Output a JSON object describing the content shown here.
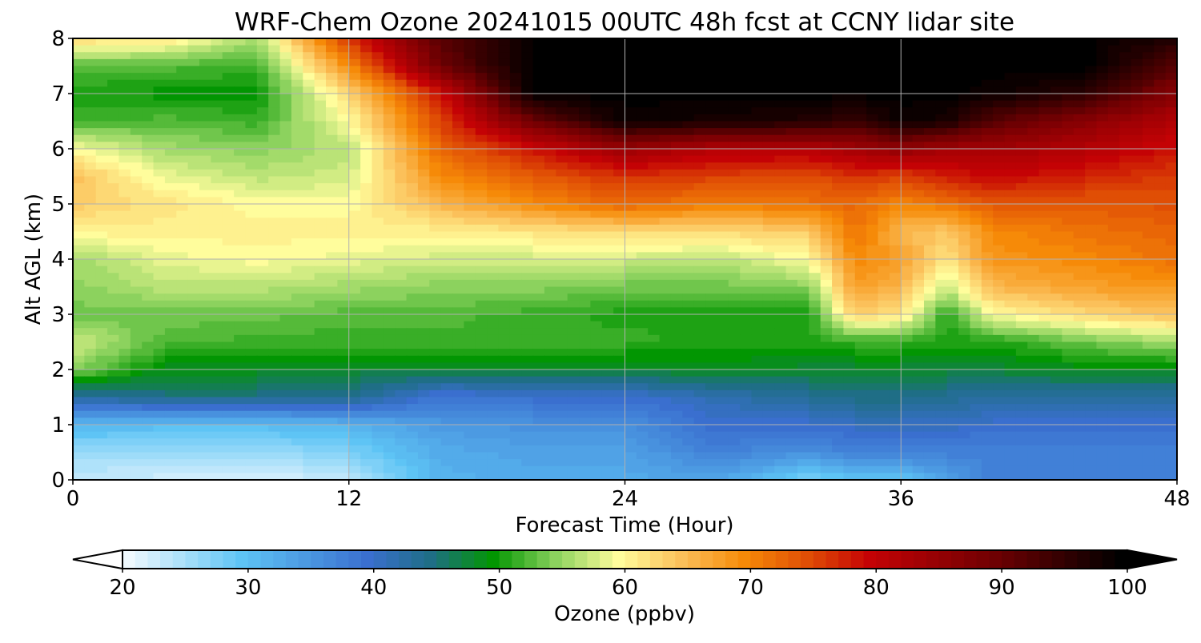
{
  "chart_data": {
    "type": "heatmap",
    "title": "WRF-Chem Ozone  20241015 00UTC 48h fcst at CCNY lidar site",
    "xlabel": "Forecast Time (Hour)",
    "ylabel": "Alt AGL (km)",
    "xlim": [
      0,
      48
    ],
    "ylim": [
      0,
      8
    ],
    "x_ticks": [
      "0",
      "12",
      "24",
      "36",
      "48"
    ],
    "y_ticks": [
      "0",
      "1",
      "2",
      "3",
      "4",
      "5",
      "6",
      "7",
      "8"
    ],
    "grid": true,
    "colorbar": {
      "label": "Ozone  (ppbv)",
      "range": [
        20,
        100
      ],
      "extend": "both",
      "ticks": [
        "20",
        "30",
        "40",
        "50",
        "60",
        "70",
        "80",
        "90",
        "100"
      ],
      "colors": [
        {
          "value": 20,
          "color": "#ffffff"
        },
        {
          "value": 30,
          "color": "#5ec4f5"
        },
        {
          "value": 40,
          "color": "#3a6fcf"
        },
        {
          "value": 45,
          "color": "#1f6e86"
        },
        {
          "value": 50,
          "color": "#029602"
        },
        {
          "value": 55,
          "color": "#8cd25e"
        },
        {
          "value": 60,
          "color": "#fffd9c"
        },
        {
          "value": 65,
          "color": "#fbc05a"
        },
        {
          "value": 70,
          "color": "#f68a08"
        },
        {
          "value": 75,
          "color": "#e04e05"
        },
        {
          "value": 80,
          "color": "#c40205"
        },
        {
          "value": 90,
          "color": "#6e0002"
        },
        {
          "value": 100,
          "color": "#000000"
        }
      ]
    },
    "z_units": "ppbv",
    "x": [
      0,
      4,
      8,
      12,
      16,
      20,
      24,
      28,
      32,
      34,
      36,
      38,
      40,
      44,
      48
    ],
    "y": [
      0,
      0.5,
      1,
      1.5,
      2,
      2.5,
      3,
      3.5,
      4,
      4.5,
      5,
      5.5,
      6,
      6.5,
      7,
      7.5,
      8
    ],
    "z": [
      [
        24,
        23,
        22,
        24,
        32,
        33,
        33,
        34,
        28,
        30,
        30,
        34,
        38,
        38,
        38
      ],
      [
        26,
        26,
        26,
        28,
        33,
        34,
        34,
        38,
        36,
        38,
        38,
        38,
        38,
        38,
        38
      ],
      [
        32,
        31,
        31,
        32,
        35,
        36,
        36,
        40,
        40,
        41,
        41,
        41,
        40,
        40,
        40
      ],
      [
        43,
        45,
        45,
        45,
        39,
        40,
        40,
        42,
        44,
        45,
        45,
        44,
        43,
        43,
        43
      ],
      [
        55,
        49,
        49,
        48,
        48,
        48,
        48,
        49,
        48,
        48,
        48,
        48,
        48,
        49,
        49
      ],
      [
        58,
        53,
        52,
        52,
        52,
        52,
        52,
        51,
        51,
        52,
        52,
        51,
        51,
        54,
        56
      ],
      [
        54,
        54,
        54,
        53,
        53,
        52,
        51,
        51,
        51,
        64,
        62,
        51,
        60,
        63,
        65
      ],
      [
        55,
        57,
        57,
        56,
        55,
        55,
        54,
        54,
        55,
        68,
        66,
        58,
        66,
        68,
        69
      ],
      [
        56,
        59,
        60,
        59,
        58,
        58,
        58,
        57,
        60,
        70,
        68,
        62,
        69,
        70,
        72
      ],
      [
        61,
        61,
        61,
        61,
        61,
        62,
        63,
        63,
        64,
        72,
        66,
        64,
        70,
        72,
        73
      ],
      [
        64,
        62,
        60,
        60,
        66,
        70,
        73,
        71,
        72,
        73,
        70,
        72,
        74,
        74,
        75
      ],
      [
        65,
        59,
        57,
        58,
        70,
        74,
        77,
        76,
        75,
        77,
        76,
        78,
        80,
        78,
        76
      ],
      [
        60,
        56,
        55,
        57,
        73,
        79,
        85,
        82,
        82,
        84,
        86,
        84,
        84,
        82,
        79
      ],
      [
        52,
        53,
        52,
        60,
        76,
        90,
        99,
        98,
        97,
        95,
        99,
        98,
        92,
        87,
        82
      ],
      [
        51,
        50,
        50,
        63,
        79,
        100,
        100,
        100,
        100,
        100,
        100,
        100,
        99,
        96,
        87
      ],
      [
        53,
        53,
        52,
        70,
        90,
        100,
        100,
        100,
        100,
        100,
        100,
        100,
        100,
        100,
        92
      ],
      [
        63,
        62,
        56,
        77,
        92,
        100,
        100,
        100,
        100,
        100,
        100,
        100,
        100,
        100,
        97
      ]
    ]
  }
}
